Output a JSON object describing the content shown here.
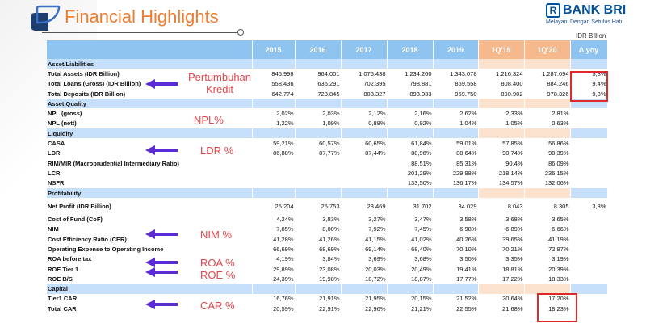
{
  "header": {
    "title": "Financial Highlights",
    "brand": "BANK BRI",
    "brand_mark": "R",
    "tagline": "Melayani Dengan Setulus Hati",
    "unit": "IDR Billion"
  },
  "columns": [
    "",
    "2015",
    "2016",
    "2017",
    "2018",
    "2019",
    "1Q'19",
    "1Q'20",
    "Δ yoy"
  ],
  "rows": [
    {
      "type": "sec",
      "label": "Asset/Liabilities"
    },
    {
      "type": "data",
      "label": "Total Assets (IDR Billion)",
      "values": [
        "845.998",
        "964.001",
        "1.076.438",
        "1.234.200",
        "1.343.078",
        "1.216.324",
        "1.287.094",
        "5,8%"
      ]
    },
    {
      "type": "data",
      "label": "Total Loans (Gross) (IDR Billion)",
      "values": [
        "558.436",
        "635.291",
        "702.395",
        "798.881",
        "859.558",
        "808.400",
        "884.246",
        "9,4%"
      ]
    },
    {
      "type": "data",
      "label": "Total Deposits (IDR Billion)",
      "values": [
        "642.774",
        "723.845",
        "803.327",
        "898.033",
        "969.750",
        "890.902",
        "978.326",
        "9,8%"
      ]
    },
    {
      "type": "sec",
      "label": "Asset Quality"
    },
    {
      "type": "data",
      "label": "NPL (gross)",
      "values": [
        "2,02%",
        "2,03%",
        "2,12%",
        "2,16%",
        "2,62%",
        "2,33%",
        "2,81%",
        ""
      ]
    },
    {
      "type": "data",
      "label": "NPL (nett)",
      "values": [
        "1,22%",
        "1,09%",
        "0,88%",
        "0,92%",
        "1,04%",
        "1,05%",
        "0,63%",
        ""
      ]
    },
    {
      "type": "sec",
      "label": "Liquidity"
    },
    {
      "type": "data",
      "label": "CASA",
      "values": [
        "59,21%",
        "60,57%",
        "60,65%",
        "61,84%",
        "59,01%",
        "57,85%",
        "56,86%",
        ""
      ]
    },
    {
      "type": "data",
      "label": "LDR",
      "values": [
        "86,88%",
        "87,77%",
        "87,44%",
        "88,96%",
        "88,64%",
        "90,74%",
        "90,39%",
        ""
      ]
    },
    {
      "type": "data",
      "label": "RIM/MIR (Macroprudential Intermediary Ratio)",
      "values": [
        "",
        "",
        "",
        "88,51%",
        "85,31%",
        "90,4%",
        "86,09%",
        ""
      ]
    },
    {
      "type": "data",
      "label": "LCR",
      "values": [
        "",
        "",
        "",
        "201,29%",
        "229,98%",
        "218,14%",
        "236,15%",
        ""
      ]
    },
    {
      "type": "data",
      "label": "NSFR",
      "values": [
        "",
        "",
        "",
        "133,50%",
        "136,17%",
        "134,57%",
        "132,06%",
        ""
      ]
    },
    {
      "type": "sec",
      "label": "Profitability"
    },
    {
      "type": "gap"
    },
    {
      "type": "data",
      "label": "Net Profit (IDR Billion)",
      "values": [
        "25.204",
        "25.753",
        "28.469",
        "31.702",
        "34.029",
        "8.043",
        "8.305",
        "3,3%"
      ]
    },
    {
      "type": "gap"
    },
    {
      "type": "data",
      "label": "Cost of Fund (CoF)",
      "values": [
        "4,24%",
        "3,83%",
        "3,27%",
        "3,47%",
        "3,58%",
        "3,68%",
        "3,65%",
        ""
      ]
    },
    {
      "type": "data",
      "label": "NIM",
      "values": [
        "7,85%",
        "8,00%",
        "7,92%",
        "7,45%",
        "6,98%",
        "6,89%",
        "6,66%",
        ""
      ]
    },
    {
      "type": "data",
      "label": "Cost Efficiency Ratio (CER)",
      "values": [
        "41,28%",
        "41,26%",
        "41,15%",
        "41,02%",
        "40,26%",
        "39,65%",
        "41,19%",
        ""
      ]
    },
    {
      "type": "data",
      "label": "Operating Expense to Operating Income",
      "values": [
        "66,69%",
        "68,69%",
        "69,14%",
        "68,40%",
        "70,10%",
        "70,21%",
        "72,97%",
        ""
      ]
    },
    {
      "type": "data",
      "label": "ROA before tax",
      "values": [
        "4,19%",
        "3,84%",
        "3,69%",
        "3,68%",
        "3,50%",
        "3,35%",
        "3,19%",
        ""
      ]
    },
    {
      "type": "data",
      "label": "ROE  Tier 1",
      "values": [
        "29,89%",
        "23,08%",
        "20,03%",
        "20,49%",
        "19,41%",
        "18,81%",
        "20,39%",
        ""
      ]
    },
    {
      "type": "data",
      "label": "ROE B/S",
      "values": [
        "24,39%",
        "19,98%",
        "18,72%",
        "18,87%",
        "17,77%",
        "17,22%",
        "18,33%",
        ""
      ]
    },
    {
      "type": "sec",
      "label": "Capital"
    },
    {
      "type": "data",
      "label": "Tier1 CAR",
      "values": [
        "16,76%",
        "21,91%",
        "21,95%",
        "20,15%",
        "21,52%",
        "20,64%",
        "17,20%",
        ""
      ]
    },
    {
      "type": "data",
      "label": "Total CAR",
      "values": [
        "20,59%",
        "22,91%",
        "22,96%",
        "21,21%",
        "22,55%",
        "21,68%",
        "18,23%",
        ""
      ]
    }
  ],
  "annotations": {
    "kredit": "Pertumbuhan Kredit",
    "npl": "NPL%",
    "ldr": "LDR %",
    "nim": "NIM %",
    "roa": "ROA %",
    "roe": "ROE %",
    "car": "CAR %"
  },
  "colors": {
    "header_blue": "#8fc4f1",
    "header_orange": "#f5b98d",
    "note_red": "#e0474c",
    "arrow_purple": "#5b2bd6"
  }
}
